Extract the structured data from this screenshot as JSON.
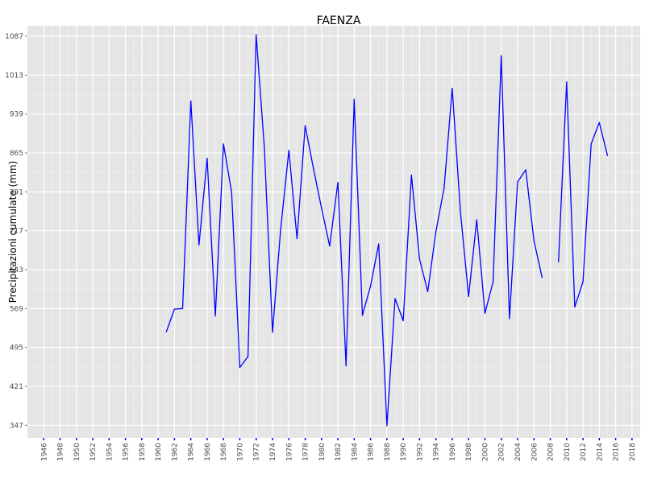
{
  "chart_data": {
    "type": "line",
    "title": "FAENZA",
    "xlabel": "",
    "ylabel": "Precipitazioni cumulate (mm)",
    "xlim": [
      1944,
      2019
    ],
    "ylim": [
      323,
      1107
    ],
    "x_ticks": [
      1946,
      1948,
      1950,
      1952,
      1954,
      1956,
      1958,
      1960,
      1962,
      1964,
      1966,
      1968,
      1970,
      1972,
      1974,
      1976,
      1978,
      1980,
      1982,
      1984,
      1986,
      1988,
      1990,
      1992,
      1994,
      1996,
      1998,
      2000,
      2002,
      2004,
      2006,
      2008,
      2010,
      2012,
      2014,
      2016,
      2018
    ],
    "y_ticks": [
      347,
      421,
      495,
      569,
      643,
      717,
      791,
      865,
      939,
      1013,
      1087
    ],
    "grid": true,
    "background": "#e5e5e5",
    "line_color": "#0000ff",
    "series": [
      {
        "x": [
          1961,
          1962,
          1963,
          1964,
          1965,
          1966,
          1967,
          1968,
          1969,
          1970,
          1971,
          1972,
          1973,
          1974,
          1975,
          1976,
          1977,
          1978,
          1979,
          1980,
          1981,
          1982,
          1983,
          1984,
          1985,
          1986,
          1987,
          1988,
          1989,
          1990,
          1991,
          1992,
          1993,
          1994,
          1995,
          1996,
          1997,
          1998,
          1999,
          2000,
          2001,
          2002,
          2003,
          2004,
          2005,
          2006,
          2007,
          null,
          2009,
          2010,
          2011,
          2012,
          2013,
          2014,
          2015
        ],
        "y": [
          525,
          568,
          569,
          964,
          690,
          855,
          555,
          882,
          790,
          457,
          478,
          1090,
          875,
          524,
          720,
          870,
          702,
          917,
          836,
          760,
          688,
          809,
          460,
          967,
          556,
          612,
          692,
          346,
          588,
          546,
          823,
          663,
          601,
          716,
          798,
          988,
          753,
          592,
          738,
          560,
          620,
          1050,
          550,
          810,
          833,
          698,
          628,
          null,
          658,
          1000,
          572,
          620,
          882,
          923,
          860
        ]
      }
    ]
  }
}
